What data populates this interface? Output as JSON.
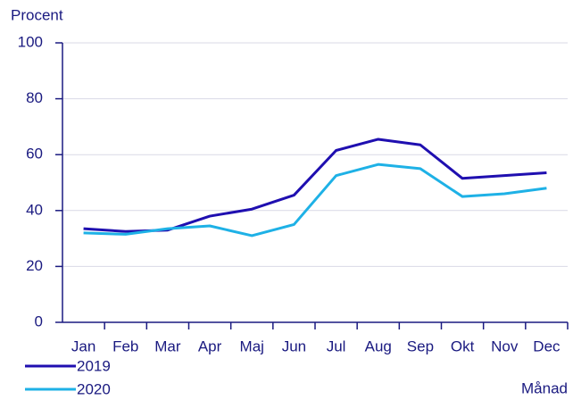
{
  "chart_data": {
    "type": "line",
    "y_label": "Procent",
    "x_label": "Månad",
    "categories": [
      "Jan",
      "Feb",
      "Mar",
      "Apr",
      "Maj",
      "Jun",
      "Jul",
      "Aug",
      "Sep",
      "Okt",
      "Nov",
      "Dec"
    ],
    "series": [
      {
        "name": "2019",
        "color": "#1f0fb0",
        "values": [
          33.5,
          32.5,
          33,
          38,
          40.5,
          45.5,
          61.5,
          65.5,
          63.5,
          51.5,
          52.5,
          53.5
        ]
      },
      {
        "name": "2020",
        "color": "#1eb1e6",
        "values": [
          32,
          31.5,
          33.5,
          34.5,
          31,
          35,
          52.5,
          56.5,
          55,
          45,
          46,
          48
        ]
      }
    ],
    "ylim": [
      0,
      100
    ],
    "yticks": [
      0,
      20,
      40,
      60,
      80,
      100
    ],
    "grid": true
  }
}
